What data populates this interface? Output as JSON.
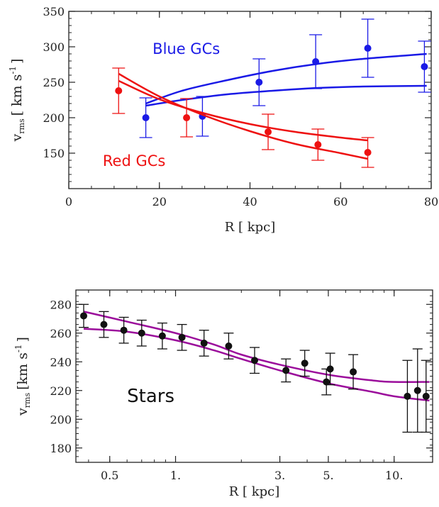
{
  "chart_data": [
    {
      "type": "scatter",
      "title": "",
      "xlabel": "R  [ kpc]",
      "ylabel_main": "v",
      "ylabel_sub": "rms",
      "ylabel_unit": "[ km s",
      "ylabel_exp": "-1",
      "ylabel_close": "]",
      "xlim": [
        0,
        80
      ],
      "ylim": [
        100,
        350
      ],
      "xticks": [
        0,
        20,
        40,
        60,
        80
      ],
      "xtick_labels": [
        "0",
        "20",
        "40",
        "60",
        "80"
      ],
      "yticks": [
        150,
        200,
        250,
        300,
        350
      ],
      "ytick_labels": [
        "150",
        "200",
        "250",
        "300",
        "350"
      ],
      "annotations": [
        {
          "text": "Blue GCs",
          "x": 18.5,
          "y": 290,
          "color": "#1a1ae6"
        },
        {
          "text": "Red GCs",
          "x": 7.5,
          "y": 132,
          "color": "#ee1111"
        }
      ],
      "series": [
        {
          "color": "#1a1ae6",
          "points": [
            {
              "x": 17,
              "y": 200,
              "yerr": 28
            },
            {
              "x": 29.5,
              "y": 202,
              "yerr": 28
            },
            {
              "x": 42,
              "y": 250,
              "yerr": 33
            },
            {
              "x": 54.5,
              "y": 279,
              "yerr": 38
            },
            {
              "x": 66,
              "y": 298,
              "yerr": 41
            },
            {
              "x": 78.5,
              "y": 272,
              "yerr": 36
            }
          ],
          "curves": [
            [
              [
                17,
                220
              ],
              [
                25,
                238
              ],
              [
                35,
                253
              ],
              [
                45,
                266
              ],
              [
                55,
                276
              ],
              [
                65,
                283
              ],
              [
                79,
                290
              ]
            ],
            [
              [
                17,
                217
              ],
              [
                25,
                225
              ],
              [
                35,
                233
              ],
              [
                45,
                238
              ],
              [
                55,
                242
              ],
              [
                65,
                244
              ],
              [
                79,
                245
              ]
            ]
          ]
        },
        {
          "color": "#ee1111",
          "points": [
            {
              "x": 11,
              "y": 238,
              "yerr": 32
            },
            {
              "x": 26,
              "y": 200,
              "yerr": 27
            },
            {
              "x": 44,
              "y": 180,
              "yerr": 25
            },
            {
              "x": 55,
              "y": 162,
              "yerr": 22
            },
            {
              "x": 66,
              "y": 151,
              "yerr": 21
            }
          ],
          "curves": [
            [
              [
                11,
                262
              ],
              [
                20,
                230
              ],
              [
                30,
                203
              ],
              [
                40,
                181
              ],
              [
                50,
                163
              ],
              [
                60,
                150
              ],
              [
                66,
                142
              ]
            ],
            [
              [
                11,
                252
              ],
              [
                20,
                226
              ],
              [
                30,
                206
              ],
              [
                40,
                191
              ],
              [
                50,
                180
              ],
              [
                60,
                172
              ],
              [
                66,
                168
              ]
            ]
          ]
        }
      ]
    },
    {
      "type": "scatter",
      "title": "",
      "xlabel": "R [ kpc]",
      "ylabel_main": "v",
      "ylabel_sub": "rms",
      "ylabel_unit": "[km s",
      "ylabel_exp": "-1",
      "ylabel_close": "]",
      "xscale": "log",
      "xlim": [
        0.35,
        15
      ],
      "ylim": [
        170,
        290
      ],
      "xticks": [
        0.5,
        1,
        3,
        5,
        10
      ],
      "xtick_labels": [
        "0.5",
        "1.",
        "3.",
        "5.",
        "10."
      ],
      "yticks": [
        180,
        200,
        220,
        240,
        260,
        280
      ],
      "ytick_labels": [
        "180",
        "200",
        "220",
        "240",
        "260",
        "280"
      ],
      "annotations": [
        {
          "text": "Stars",
          "x": 0.6,
          "y": 212,
          "color": "#111111"
        }
      ],
      "series": [
        {
          "color": "#111111",
          "points": [
            {
              "x": 0.38,
              "y": 272,
              "yerr": 8
            },
            {
              "x": 0.47,
              "y": 266,
              "yerr": 9
            },
            {
              "x": 0.58,
              "y": 262,
              "yerr": 9
            },
            {
              "x": 0.7,
              "y": 260,
              "yerr": 9
            },
            {
              "x": 0.87,
              "y": 258,
              "yerr": 9
            },
            {
              "x": 1.07,
              "y": 257,
              "yerr": 9
            },
            {
              "x": 1.35,
              "y": 253,
              "yerr": 9
            },
            {
              "x": 1.75,
              "y": 251,
              "yerr": 9
            },
            {
              "x": 2.3,
              "y": 241,
              "yerr": 9
            },
            {
              "x": 3.2,
              "y": 234,
              "yerr": 8
            },
            {
              "x": 3.9,
              "y": 239,
              "yerr": 9
            },
            {
              "x": 4.9,
              "y": 226,
              "yerr": 9
            },
            {
              "x": 5.1,
              "y": 235,
              "yerr": 11
            },
            {
              "x": 6.5,
              "y": 233,
              "yerr": 12
            },
            {
              "x": 11.5,
              "y": 216,
              "yerr": 25
            },
            {
              "x": 12.8,
              "y": 220,
              "yerr": 29
            },
            {
              "x": 14.0,
              "y": 216,
              "yerr": 25
            }
          ]
        }
      ],
      "curves_color": "#9b0d9b",
      "curves": [
        [
          [
            0.38,
            275
          ],
          [
            0.6,
            268
          ],
          [
            1.0,
            260
          ],
          [
            1.5,
            252
          ],
          [
            2.0,
            245
          ],
          [
            3.0,
            238
          ],
          [
            5.0,
            231
          ],
          [
            8.0,
            227
          ],
          [
            10.0,
            226
          ],
          [
            14.5,
            226
          ]
        ],
        [
          [
            0.38,
            263
          ],
          [
            0.6,
            261
          ],
          [
            1.0,
            255
          ],
          [
            1.5,
            248
          ],
          [
            2.0,
            242
          ],
          [
            3.0,
            234
          ],
          [
            5.0,
            225
          ],
          [
            8.0,
            219
          ],
          [
            10.0,
            216
          ],
          [
            14.5,
            213
          ]
        ]
      ]
    }
  ]
}
